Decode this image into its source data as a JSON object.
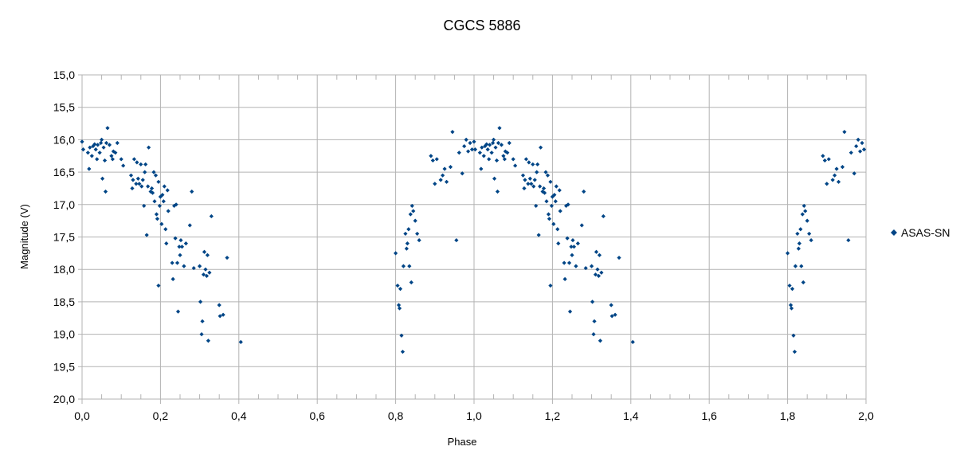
{
  "chart_data": {
    "type": "scatter",
    "title": "CGCS 5886",
    "xlabel": "Phase",
    "ylabel": "Magnitude (V)",
    "xlim": [
      0,
      2
    ],
    "ylim": [
      15,
      20
    ],
    "y_inverted": true,
    "grid": true,
    "legend_position": "right",
    "x_ticks": [
      "0,0",
      "0,2",
      "0,4",
      "0,6",
      "0,8",
      "1,0",
      "1,2",
      "1,4",
      "1,6",
      "1,8",
      "2,0"
    ],
    "y_ticks": [
      "15,0",
      "15,5",
      "16,0",
      "16,5",
      "17,0",
      "17,5",
      "18,0",
      "18,5",
      "19,0",
      "19,5",
      "20,0"
    ],
    "series": [
      {
        "name": "ASAS-SN",
        "color": "#004586",
        "marker": "diamond",
        "points": [
          [
            0.0,
            16.03
          ],
          [
            0.003,
            16.15
          ],
          [
            0.015,
            16.2
          ],
          [
            0.018,
            16.45
          ],
          [
            0.02,
            16.12
          ],
          [
            0.025,
            16.25
          ],
          [
            0.028,
            16.1
          ],
          [
            0.032,
            16.07
          ],
          [
            0.035,
            16.15
          ],
          [
            0.038,
            16.3
          ],
          [
            0.04,
            16.08
          ],
          [
            0.045,
            16.2
          ],
          [
            0.048,
            16.05
          ],
          [
            0.05,
            16.0
          ],
          [
            0.052,
            16.6
          ],
          [
            0.055,
            16.12
          ],
          [
            0.058,
            16.32
          ],
          [
            0.06,
            16.8
          ],
          [
            0.062,
            16.05
          ],
          [
            0.065,
            15.82
          ],
          [
            0.07,
            16.08
          ],
          [
            0.075,
            16.25
          ],
          [
            0.078,
            16.3
          ],
          [
            0.08,
            16.18
          ],
          [
            0.085,
            16.2
          ],
          [
            0.09,
            16.05
          ],
          [
            0.1,
            16.3
          ],
          [
            0.105,
            16.4
          ],
          [
            0.125,
            16.55
          ],
          [
            0.128,
            16.75
          ],
          [
            0.13,
            16.62
          ],
          [
            0.133,
            16.3
          ],
          [
            0.138,
            16.68
          ],
          [
            0.14,
            16.35
          ],
          [
            0.143,
            16.6
          ],
          [
            0.146,
            16.68
          ],
          [
            0.15,
            16.38
          ],
          [
            0.152,
            16.72
          ],
          [
            0.155,
            16.62
          ],
          [
            0.158,
            17.02
          ],
          [
            0.16,
            16.5
          ],
          [
            0.162,
            16.38
          ],
          [
            0.165,
            17.47
          ],
          [
            0.168,
            16.72
          ],
          [
            0.17,
            16.12
          ],
          [
            0.175,
            16.8
          ],
          [
            0.178,
            16.75
          ],
          [
            0.18,
            16.82
          ],
          [
            0.183,
            16.5
          ],
          [
            0.185,
            16.95
          ],
          [
            0.188,
            16.55
          ],
          [
            0.19,
            17.15
          ],
          [
            0.192,
            17.22
          ],
          [
            0.195,
            16.65
          ],
          [
            0.198,
            17.02
          ],
          [
            0.2,
            16.88
          ],
          [
            0.203,
            17.3
          ],
          [
            0.205,
            16.85
          ],
          [
            0.208,
            16.95
          ],
          [
            0.21,
            16.72
          ],
          [
            0.213,
            17.38
          ],
          [
            0.215,
            17.6
          ],
          [
            0.218,
            16.78
          ],
          [
            0.22,
            17.1
          ],
          [
            0.23,
            17.9
          ],
          [
            0.232,
            18.15
          ],
          [
            0.235,
            17.02
          ],
          [
            0.238,
            17.52
          ],
          [
            0.24,
            17.0
          ],
          [
            0.243,
            17.9
          ],
          [
            0.245,
            18.65
          ],
          [
            0.248,
            17.65
          ],
          [
            0.25,
            17.78
          ],
          [
            0.252,
            17.55
          ],
          [
            0.255,
            17.65
          ],
          [
            0.26,
            17.95
          ],
          [
            0.265,
            17.6
          ],
          [
            0.275,
            17.32
          ],
          [
            0.28,
            16.8
          ],
          [
            0.285,
            17.98
          ],
          [
            0.3,
            17.95
          ],
          [
            0.302,
            18.5
          ],
          [
            0.305,
            19.0
          ],
          [
            0.307,
            18.8
          ],
          [
            0.31,
            18.08
          ],
          [
            0.312,
            17.73
          ],
          [
            0.315,
            18.0
          ],
          [
            0.318,
            18.1
          ],
          [
            0.32,
            17.78
          ],
          [
            0.322,
            19.1
          ],
          [
            0.325,
            18.05
          ],
          [
            0.33,
            17.18
          ],
          [
            0.35,
            18.55
          ],
          [
            0.352,
            18.72
          ],
          [
            0.36,
            18.7
          ],
          [
            0.37,
            17.82
          ],
          [
            0.405,
            19.12
          ],
          [
            0.195,
            18.25
          ],
          [
            0.8,
            17.75
          ],
          [
            0.805,
            18.25
          ],
          [
            0.808,
            18.55
          ],
          [
            0.81,
            18.6
          ],
          [
            0.812,
            18.3
          ],
          [
            0.815,
            19.02
          ],
          [
            0.818,
            19.27
          ],
          [
            0.82,
            17.95
          ],
          [
            0.825,
            17.45
          ],
          [
            0.828,
            17.68
          ],
          [
            0.83,
            17.6
          ],
          [
            0.833,
            17.38
          ],
          [
            0.835,
            17.95
          ],
          [
            0.838,
            17.15
          ],
          [
            0.84,
            18.2
          ],
          [
            0.842,
            17.02
          ],
          [
            0.845,
            17.1
          ],
          [
            0.85,
            17.25
          ],
          [
            0.855,
            17.45
          ],
          [
            0.86,
            17.55
          ],
          [
            0.89,
            16.25
          ],
          [
            0.895,
            16.32
          ],
          [
            0.9,
            16.68
          ],
          [
            0.905,
            16.3
          ],
          [
            0.915,
            16.62
          ],
          [
            0.92,
            16.55
          ],
          [
            0.925,
            16.45
          ],
          [
            0.93,
            16.65
          ],
          [
            0.94,
            16.42
          ],
          [
            0.945,
            15.88
          ],
          [
            0.955,
            17.55
          ],
          [
            0.962,
            16.2
          ],
          [
            0.97,
            16.52
          ],
          [
            0.975,
            16.1
          ],
          [
            0.98,
            16.0
          ],
          [
            0.985,
            16.18
          ],
          [
            0.99,
            16.05
          ],
          [
            0.995,
            16.15
          ],
          [
            1.0,
            16.03
          ],
          [
            1.003,
            16.15
          ],
          [
            1.015,
            16.2
          ],
          [
            1.018,
            16.45
          ],
          [
            1.02,
            16.12
          ],
          [
            1.025,
            16.25
          ],
          [
            1.028,
            16.1
          ],
          [
            1.032,
            16.07
          ],
          [
            1.035,
            16.15
          ],
          [
            1.038,
            16.3
          ],
          [
            1.04,
            16.08
          ],
          [
            1.045,
            16.2
          ],
          [
            1.048,
            16.05
          ],
          [
            1.05,
            16.0
          ],
          [
            1.052,
            16.6
          ],
          [
            1.055,
            16.12
          ],
          [
            1.058,
            16.32
          ],
          [
            1.06,
            16.8
          ],
          [
            1.062,
            16.05
          ],
          [
            1.065,
            15.82
          ],
          [
            1.07,
            16.08
          ],
          [
            1.075,
            16.25
          ],
          [
            1.078,
            16.3
          ],
          [
            1.08,
            16.18
          ],
          [
            1.085,
            16.2
          ],
          [
            1.09,
            16.05
          ],
          [
            1.1,
            16.3
          ],
          [
            1.105,
            16.4
          ],
          [
            1.125,
            16.55
          ],
          [
            1.128,
            16.75
          ],
          [
            1.13,
            16.62
          ],
          [
            1.133,
            16.3
          ],
          [
            1.138,
            16.68
          ],
          [
            1.14,
            16.35
          ],
          [
            1.143,
            16.6
          ],
          [
            1.146,
            16.68
          ],
          [
            1.15,
            16.38
          ],
          [
            1.152,
            16.72
          ],
          [
            1.155,
            16.62
          ],
          [
            1.158,
            17.02
          ],
          [
            1.16,
            16.5
          ],
          [
            1.162,
            16.38
          ],
          [
            1.165,
            17.47
          ],
          [
            1.168,
            16.72
          ],
          [
            1.17,
            16.12
          ],
          [
            1.175,
            16.8
          ],
          [
            1.178,
            16.75
          ],
          [
            1.18,
            16.82
          ],
          [
            1.183,
            16.5
          ],
          [
            1.185,
            16.95
          ],
          [
            1.188,
            16.55
          ],
          [
            1.19,
            17.15
          ],
          [
            1.192,
            17.22
          ],
          [
            1.195,
            16.65
          ],
          [
            1.198,
            17.02
          ],
          [
            1.2,
            16.88
          ],
          [
            1.203,
            17.3
          ],
          [
            1.205,
            16.85
          ],
          [
            1.208,
            16.95
          ],
          [
            1.21,
            16.72
          ],
          [
            1.213,
            17.38
          ],
          [
            1.215,
            17.6
          ],
          [
            1.218,
            16.78
          ],
          [
            1.22,
            17.1
          ],
          [
            1.23,
            17.9
          ],
          [
            1.232,
            18.15
          ],
          [
            1.235,
            17.02
          ],
          [
            1.238,
            17.52
          ],
          [
            1.24,
            17.0
          ],
          [
            1.243,
            17.9
          ],
          [
            1.245,
            18.65
          ],
          [
            1.248,
            17.65
          ],
          [
            1.25,
            17.78
          ],
          [
            1.252,
            17.55
          ],
          [
            1.255,
            17.65
          ],
          [
            1.26,
            17.95
          ],
          [
            1.265,
            17.6
          ],
          [
            1.275,
            17.32
          ],
          [
            1.28,
            16.8
          ],
          [
            1.285,
            17.98
          ],
          [
            1.3,
            17.95
          ],
          [
            1.302,
            18.5
          ],
          [
            1.305,
            19.0
          ],
          [
            1.307,
            18.8
          ],
          [
            1.31,
            18.08
          ],
          [
            1.312,
            17.73
          ],
          [
            1.315,
            18.0
          ],
          [
            1.318,
            18.1
          ],
          [
            1.32,
            17.78
          ],
          [
            1.322,
            19.1
          ],
          [
            1.325,
            18.05
          ],
          [
            1.33,
            17.18
          ],
          [
            1.35,
            18.55
          ],
          [
            1.352,
            18.72
          ],
          [
            1.36,
            18.7
          ],
          [
            1.37,
            17.82
          ],
          [
            1.405,
            19.12
          ],
          [
            1.195,
            18.25
          ],
          [
            1.8,
            17.75
          ],
          [
            1.805,
            18.25
          ],
          [
            1.808,
            18.55
          ],
          [
            1.81,
            18.6
          ],
          [
            1.812,
            18.3
          ],
          [
            1.815,
            19.02
          ],
          [
            1.818,
            19.27
          ],
          [
            1.82,
            17.95
          ],
          [
            1.825,
            17.45
          ],
          [
            1.828,
            17.68
          ],
          [
            1.83,
            17.6
          ],
          [
            1.833,
            17.38
          ],
          [
            1.835,
            17.95
          ],
          [
            1.838,
            17.15
          ],
          [
            1.84,
            18.2
          ],
          [
            1.842,
            17.02
          ],
          [
            1.845,
            17.1
          ],
          [
            1.85,
            17.25
          ],
          [
            1.855,
            17.45
          ],
          [
            1.86,
            17.55
          ],
          [
            1.89,
            16.25
          ],
          [
            1.895,
            16.32
          ],
          [
            1.9,
            16.68
          ],
          [
            1.905,
            16.3
          ],
          [
            1.915,
            16.62
          ],
          [
            1.92,
            16.55
          ],
          [
            1.925,
            16.45
          ],
          [
            1.93,
            16.65
          ],
          [
            1.94,
            16.42
          ],
          [
            1.945,
            15.88
          ],
          [
            1.955,
            17.55
          ],
          [
            1.962,
            16.2
          ],
          [
            1.97,
            16.52
          ],
          [
            1.975,
            16.1
          ],
          [
            1.98,
            16.0
          ],
          [
            1.985,
            16.18
          ],
          [
            1.99,
            16.05
          ],
          [
            1.995,
            16.15
          ]
        ]
      }
    ]
  }
}
